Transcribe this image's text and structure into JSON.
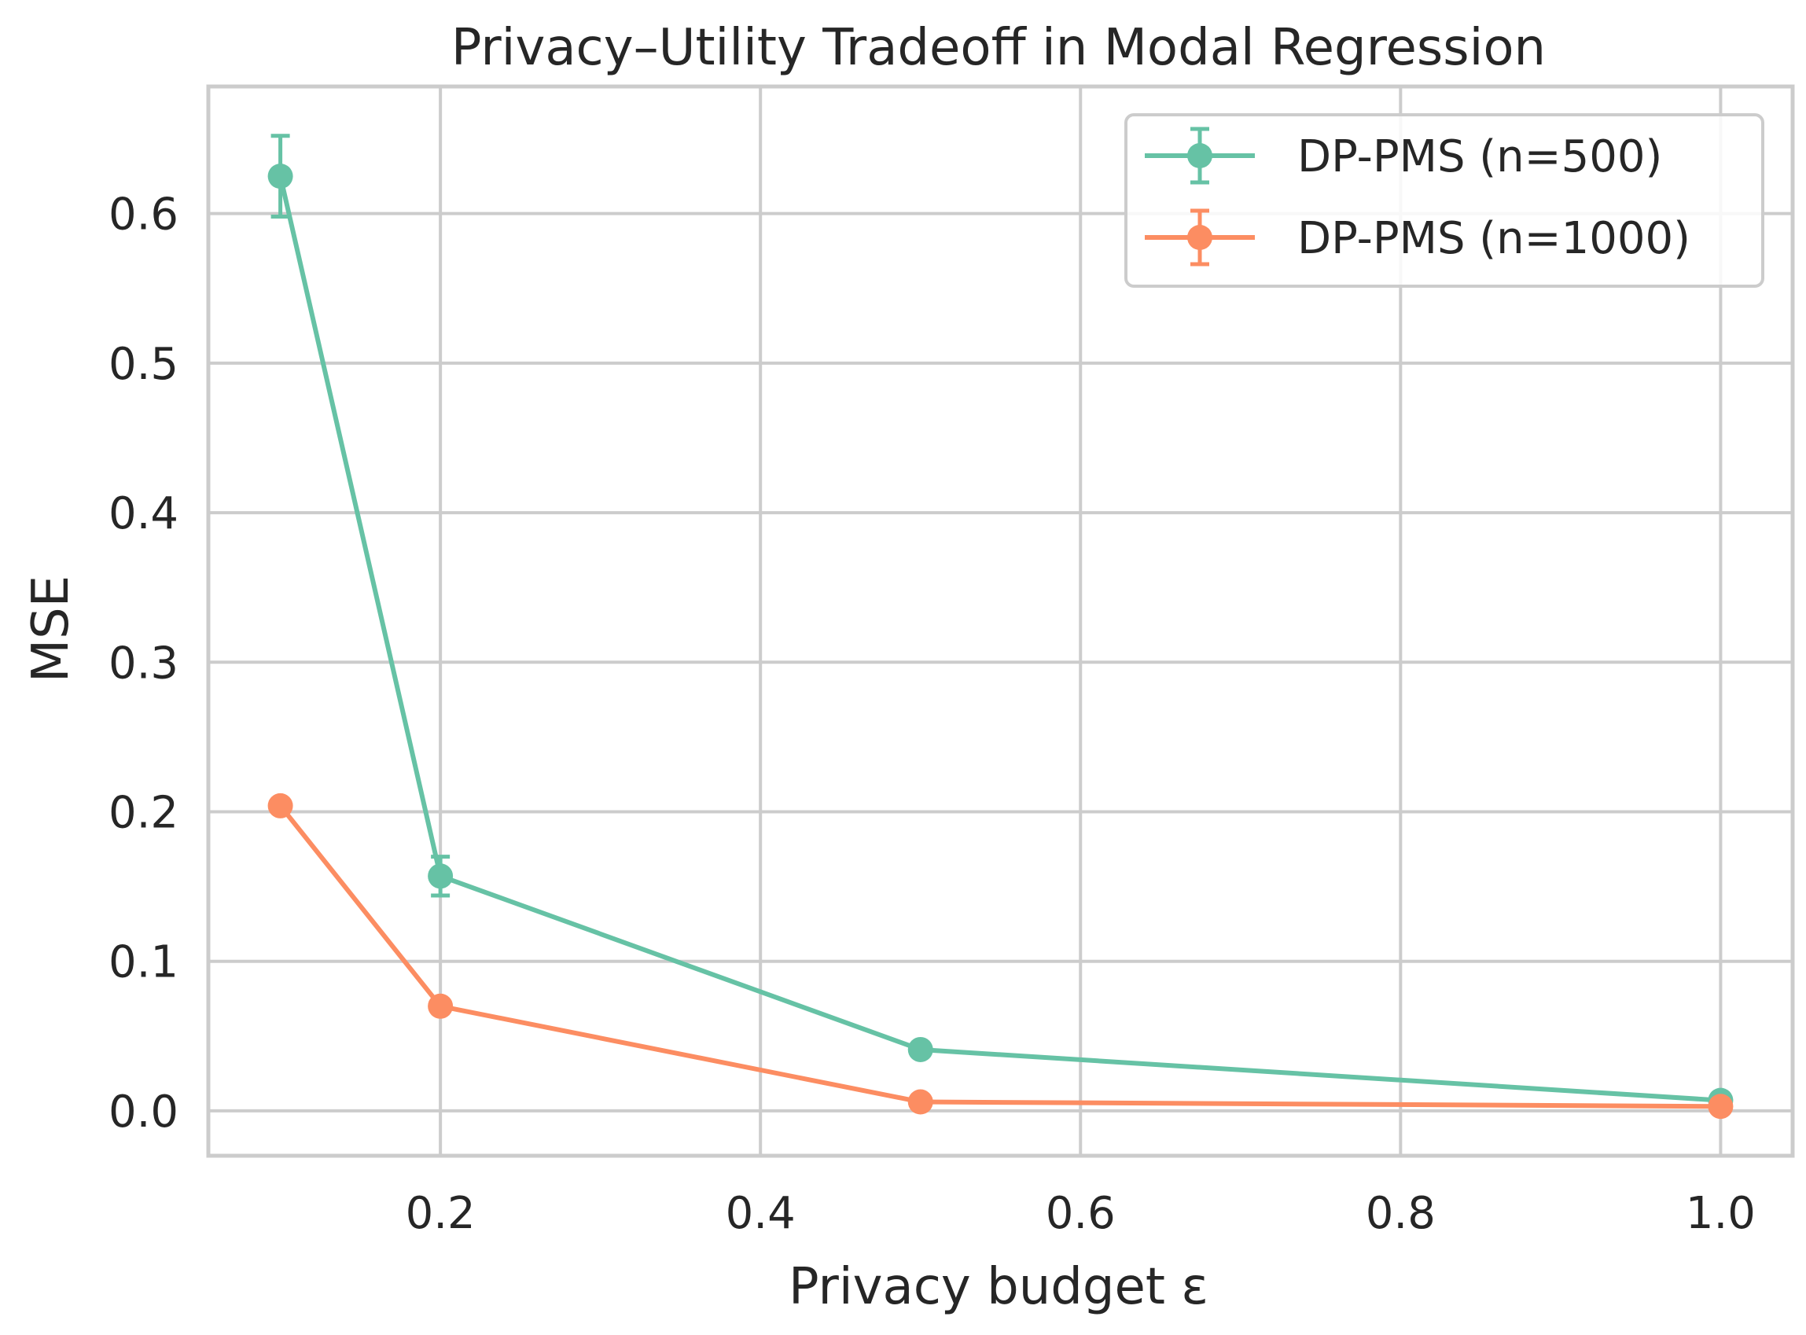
{
  "chart_data": {
    "type": "line",
    "title": "Privacy–Utility Tradeoff in Modal Regression",
    "xlabel": "Privacy budget ε",
    "ylabel": "MSE",
    "xlim": [
      0.055,
      1.045
    ],
    "ylim": [
      -0.03,
      0.685
    ],
    "xticks": [
      0.2,
      0.4,
      0.6,
      0.8,
      1.0
    ],
    "xtick_labels": [
      "0.2",
      "0.4",
      "0.6",
      "0.8",
      "1.0"
    ],
    "yticks": [
      0.0,
      0.1,
      0.2,
      0.3,
      0.4,
      0.5,
      0.6
    ],
    "ytick_labels": [
      "0.0",
      "0.1",
      "0.2",
      "0.3",
      "0.4",
      "0.5",
      "0.6"
    ],
    "grid": true,
    "legend_position": "top-right",
    "x": [
      0.1,
      0.2,
      0.5,
      1.0
    ],
    "series": [
      {
        "name": "DP-PMS (n=500)",
        "color": "#66c2a5",
        "values": [
          0.625,
          0.157,
          0.041,
          0.007
        ],
        "errors": [
          0.027,
          0.013,
          0.002,
          0.001
        ]
      },
      {
        "name": "DP-PMS (n=1000)",
        "color": "#fc8d62",
        "values": [
          0.204,
          0.07,
          0.006,
          0.003
        ],
        "errors": [
          0.002,
          0.002,
          0.001,
          0.001
        ]
      }
    ]
  }
}
